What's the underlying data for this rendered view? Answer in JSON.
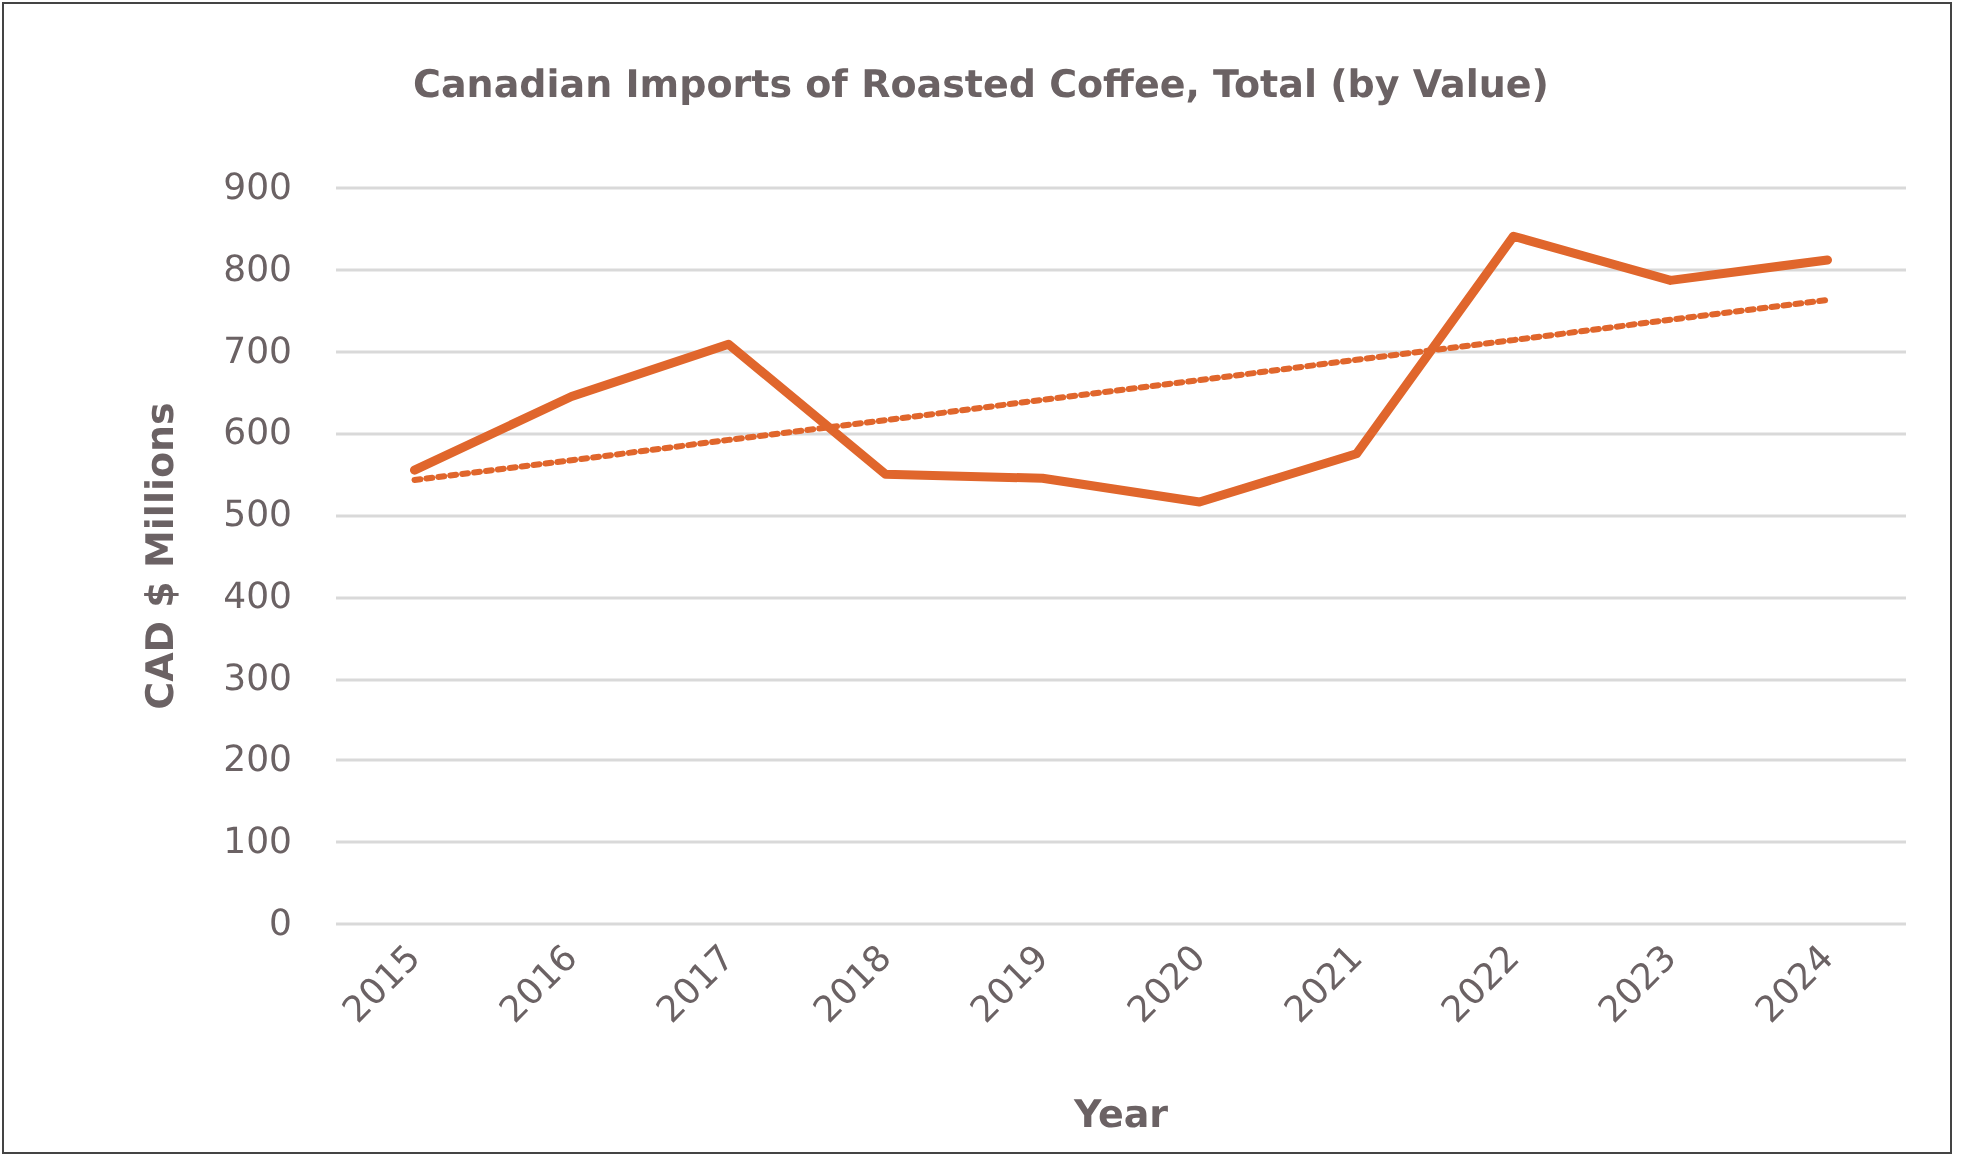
{
  "chart_data": {
    "type": "line",
    "title": "Canadian Imports of Roasted Coffee, Total (by Value)",
    "xlabel": "Year",
    "ylabel": "CAD $ Millions",
    "categories": [
      "2015",
      "2016",
      "2017",
      "2018",
      "2019",
      "2020",
      "2021",
      "2022",
      "2023",
      "2024"
    ],
    "series": [
      {
        "color": "#e0662c",
        "values": [
          555,
          645,
          709,
          550,
          545,
          516,
          575,
          841,
          787,
          812
        ],
        "line_style": "solid"
      },
      {
        "type": "line",
        "color": "#e0662c",
        "line_style": "dotted",
        "values": [
          543,
          567,
          592,
          616,
          641,
          665,
          690,
          714,
          739,
          763
        ]
      }
    ],
    "ylim": [
      0,
      900
    ],
    "yticks": [
      0,
      100,
      200,
      300,
      400,
      500,
      600,
      700,
      800,
      900
    ],
    "grid": "y",
    "marker": "none"
  }
}
